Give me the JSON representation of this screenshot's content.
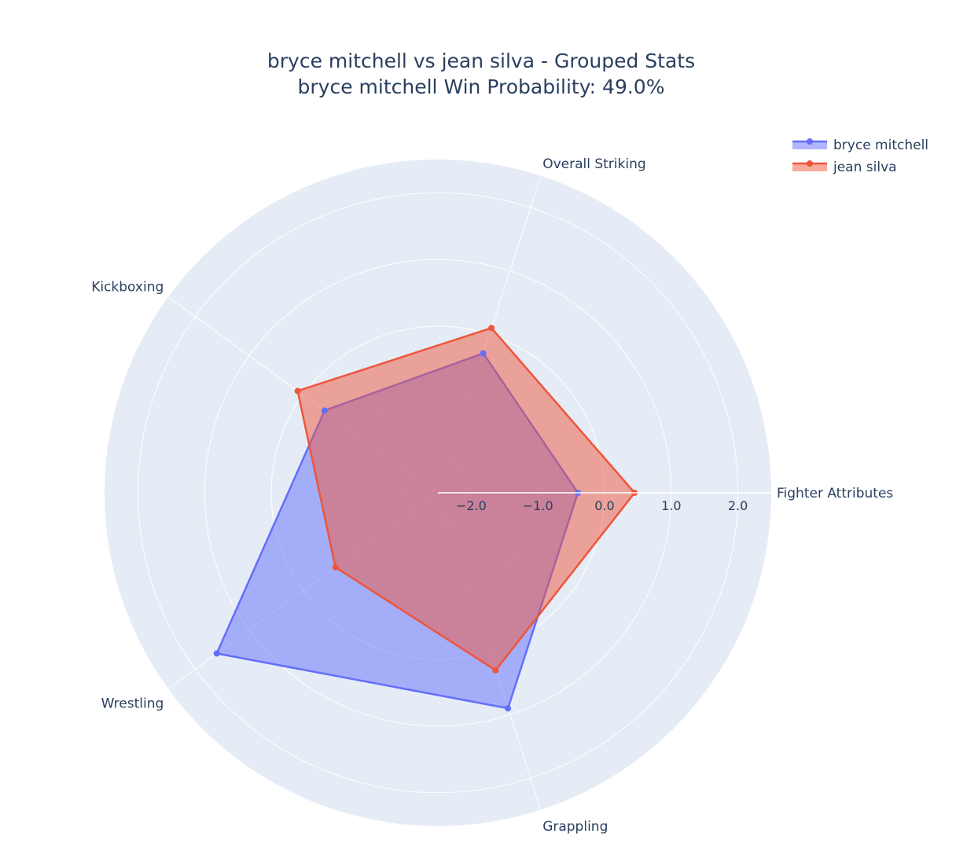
{
  "chart_data": {
    "type": "radar",
    "title": "bryce mitchell vs jean silva - Grouped Stats",
    "subtitle": "bryce mitchell Win Probability: 49.0%",
    "categories": [
      "Fighter Attributes",
      "Overall Striking",
      "Kickboxing",
      "Wrestling",
      "Grappling"
    ],
    "radial_range": [
      -2.5,
      2.5
    ],
    "radial_ticks": [
      -2.0,
      -1.0,
      0.0,
      1.0,
      2.0
    ],
    "radial_tick_labels": [
      "−2.0",
      "−1.0",
      "0.0",
      "1.0",
      "2.0"
    ],
    "grid": true,
    "legend_position": "top-right",
    "series": [
      {
        "name": "bryce mitchell",
        "color": "#636efa",
        "values": [
          -0.4,
          -0.3,
          -0.4,
          1.6,
          0.9
        ]
      },
      {
        "name": "jean silva",
        "color": "#ef553b",
        "values": [
          0.45,
          0.1,
          0.1,
          -0.6,
          0.3
        ]
      }
    ]
  }
}
